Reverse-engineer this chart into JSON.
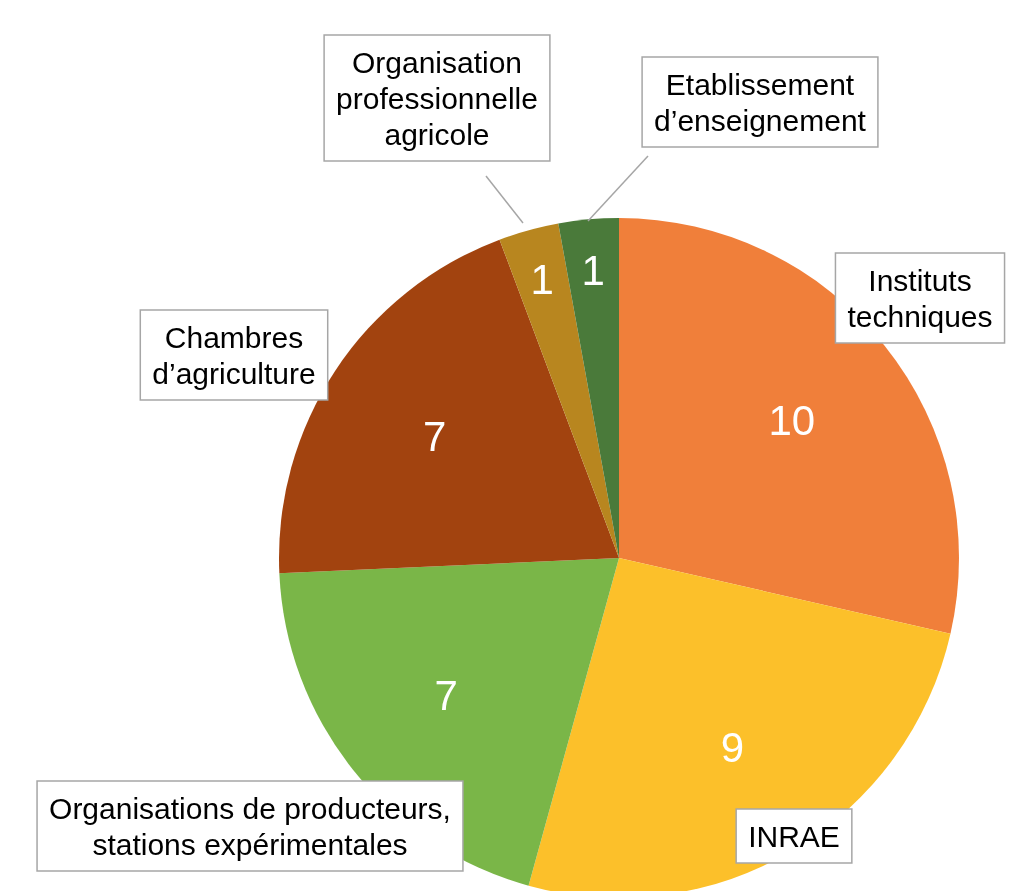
{
  "chart_data": {
    "type": "pie",
    "categories": [
      "Instituts techniques",
      "INRAE",
      "Organisations de producteurs, stations expérimentales",
      "Chambres d’agriculture",
      "Organisation professionnelle agricole",
      "Etablissement d’enseignement"
    ],
    "values": [
      10,
      9,
      7,
      7,
      1,
      1
    ],
    "colors": [
      "#f07f3a",
      "#fcc02a",
      "#7ab648",
      "#a2430f",
      "#b8861f",
      "#4a7a3a"
    ],
    "data_labels": true
  }
}
